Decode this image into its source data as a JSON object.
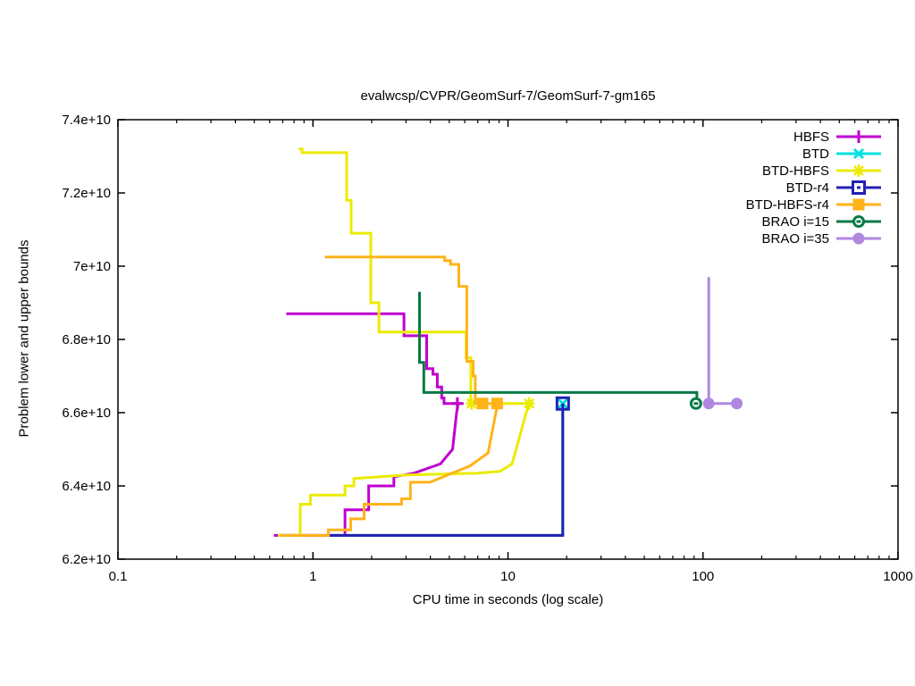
{
  "window": {
    "kind": "gnuplot-figure",
    "background": "#ffffff"
  },
  "chart_data": {
    "type": "line",
    "title": "evalwcsp/CVPR/GeomSurf-7/GeomSurf-7-gm165",
    "xlabel": "CPU time in seconds (log scale)",
    "ylabel": "Problem lower and upper bounds",
    "x_scale": "log",
    "y_scale": "linear",
    "grid": false,
    "xlim": [
      0.1,
      1000
    ],
    "value_scale": "1e10",
    "ylim_scaled": [
      6.2,
      7.4
    ],
    "x_ticks": [
      {
        "v": 0.1,
        "label": "0.1"
      },
      {
        "v": 1,
        "label": "1"
      },
      {
        "v": 10,
        "label": "10"
      },
      {
        "v": 100,
        "label": "100"
      },
      {
        "v": 1000,
        "label": "1000"
      }
    ],
    "y_ticks": [
      {
        "v": 6.2,
        "label": "6.2e+10"
      },
      {
        "v": 6.4,
        "label": "6.4e+10"
      },
      {
        "v": 6.6,
        "label": "6.6e+10"
      },
      {
        "v": 6.8,
        "label": "6.8e+10"
      },
      {
        "v": 7.0,
        "label": "7e+10"
      },
      {
        "v": 7.2,
        "label": "7.2e+10"
      },
      {
        "v": 7.4,
        "label": "7.4e+10"
      }
    ],
    "legend_position": "top-right-inside",
    "series": [
      {
        "name": "HBFS",
        "color": "#c000d0",
        "marker": "plus",
        "upper": [
          [
            0.73,
            6.87
          ],
          [
            2.93,
            6.87
          ],
          [
            2.93,
            6.81
          ],
          [
            3.83,
            6.81
          ],
          [
            3.83,
            6.72
          ],
          [
            4.12,
            6.72
          ],
          [
            4.12,
            6.705
          ],
          [
            4.34,
            6.705
          ],
          [
            4.34,
            6.67
          ],
          [
            4.57,
            6.67
          ],
          [
            4.57,
            6.64
          ],
          [
            4.7,
            6.64
          ],
          [
            4.7,
            6.625
          ],
          [
            5.77,
            6.625
          ]
        ],
        "lower": [
          [
            0.63,
            6.265
          ],
          [
            1.46,
            6.265
          ],
          [
            1.46,
            6.335
          ],
          [
            1.93,
            6.335
          ],
          [
            1.93,
            6.4
          ],
          [
            2.6,
            6.4
          ],
          [
            2.6,
            6.425
          ],
          [
            3.3,
            6.435
          ],
          [
            4.5,
            6.46
          ],
          [
            5.2,
            6.5
          ],
          [
            5.45,
            6.6
          ],
          [
            5.55,
            6.625
          ]
        ],
        "markers": [
          [
            5.5,
            6.625
          ]
        ]
      },
      {
        "name": "BTD",
        "color": "#00e0e0",
        "marker": "cross",
        "upper": [],
        "lower": [
          [
            1.2,
            6.265
          ],
          [
            19.1,
            6.265
          ],
          [
            19.1,
            6.625
          ]
        ],
        "markers": [
          [
            19.1,
            6.625
          ]
        ]
      },
      {
        "name": "BTD-HBFS",
        "color": "#ebeb00",
        "marker": "asterisk",
        "upper": [
          [
            0.845,
            7.32
          ],
          [
            0.88,
            7.32
          ],
          [
            0.88,
            7.31
          ],
          [
            1.49,
            7.31
          ],
          [
            1.49,
            7.18
          ],
          [
            1.57,
            7.18
          ],
          [
            1.57,
            7.09
          ],
          [
            1.98,
            7.09
          ],
          [
            1.98,
            6.9
          ],
          [
            2.18,
            6.9
          ],
          [
            2.18,
            6.82
          ],
          [
            6.1,
            6.82
          ],
          [
            6.1,
            6.75
          ],
          [
            6.45,
            6.75
          ],
          [
            6.45,
            6.625
          ],
          [
            12.9,
            6.625
          ]
        ],
        "lower": [
          [
            0.66,
            6.265
          ],
          [
            0.86,
            6.265
          ],
          [
            0.86,
            6.35
          ],
          [
            0.97,
            6.35
          ],
          [
            0.97,
            6.375
          ],
          [
            1.46,
            6.375
          ],
          [
            1.46,
            6.4
          ],
          [
            1.62,
            6.4
          ],
          [
            1.62,
            6.42
          ],
          [
            3.0,
            6.43
          ],
          [
            7.0,
            6.435
          ],
          [
            9.1,
            6.44
          ],
          [
            10.5,
            6.46
          ],
          [
            12.4,
            6.6
          ],
          [
            12.9,
            6.625
          ]
        ],
        "markers": [
          [
            6.5,
            6.625
          ],
          [
            12.85,
            6.625
          ]
        ]
      },
      {
        "name": "BTD-r4",
        "color": "#2222b2",
        "marker": "square-open",
        "upper": [],
        "lower": [
          [
            1.2,
            6.265
          ],
          [
            19.1,
            6.265
          ],
          [
            19.1,
            6.625
          ]
        ],
        "markers": [
          [
            19.1,
            6.625
          ]
        ]
      },
      {
        "name": "BTD-HBFS-r4",
        "color": "#ffb319",
        "marker": "square-filled",
        "upper": [
          [
            1.15,
            7.025
          ],
          [
            4.74,
            7.025
          ],
          [
            4.74,
            7.015
          ],
          [
            5.08,
            7.015
          ],
          [
            5.08,
            7.005
          ],
          [
            5.6,
            7.005
          ],
          [
            5.6,
            6.945
          ],
          [
            6.15,
            6.945
          ],
          [
            6.15,
            6.74
          ],
          [
            6.63,
            6.74
          ],
          [
            6.63,
            6.7
          ],
          [
            6.8,
            6.7
          ],
          [
            6.8,
            6.625
          ],
          [
            8.95,
            6.625
          ]
        ],
        "lower": [
          [
            0.68,
            6.265
          ],
          [
            1.2,
            6.265
          ],
          [
            1.2,
            6.28
          ],
          [
            1.56,
            6.28
          ],
          [
            1.56,
            6.31
          ],
          [
            1.83,
            6.31
          ],
          [
            1.83,
            6.35
          ],
          [
            2.85,
            6.35
          ],
          [
            2.85,
            6.365
          ],
          [
            3.16,
            6.365
          ],
          [
            3.16,
            6.41
          ],
          [
            3.98,
            6.41
          ],
          [
            6.4,
            6.455
          ],
          [
            7.9,
            6.49
          ],
          [
            8.75,
            6.61
          ],
          [
            8.95,
            6.625
          ]
        ],
        "markers": [
          [
            7.4,
            6.625
          ],
          [
            8.8,
            6.625
          ]
        ]
      },
      {
        "name": "BRAO i=15",
        "color": "#087a45",
        "marker": "circle-open-dash",
        "upper": [
          [
            3.52,
            6.93
          ],
          [
            3.52,
            6.737
          ],
          [
            3.7,
            6.737
          ],
          [
            3.7,
            6.655
          ],
          [
            93,
            6.655
          ],
          [
            93,
            6.625
          ]
        ],
        "lower": [],
        "markers": [
          [
            92,
            6.625
          ]
        ]
      },
      {
        "name": "BRAO i=35",
        "color": "#af87e0",
        "marker": "circle-filled",
        "upper": [
          [
            107,
            6.97
          ],
          [
            107,
            6.625
          ],
          [
            149,
            6.625
          ]
        ],
        "lower": [],
        "markers": [
          [
            107,
            6.625
          ],
          [
            149,
            6.625
          ]
        ]
      }
    ]
  }
}
